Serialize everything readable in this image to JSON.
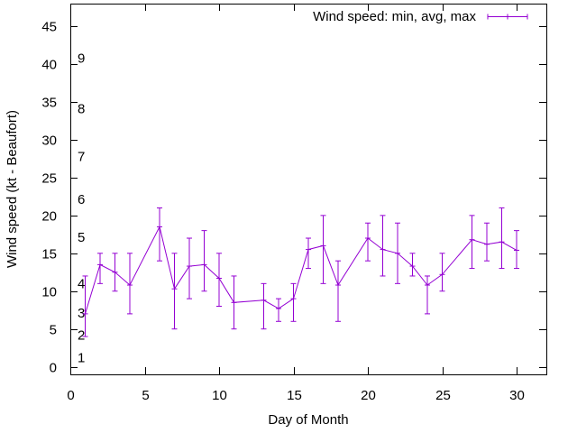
{
  "chart_data": {
    "type": "line",
    "title": "",
    "xlabel": "Day of Month",
    "ylabel": "Wind speed (kt - Beaufort)",
    "xlim": [
      0,
      32
    ],
    "ylim": [
      -1,
      48
    ],
    "grid": false,
    "legend_position": "top-right",
    "x_ticks": [
      0,
      5,
      10,
      15,
      20,
      25,
      30
    ],
    "y_ticks": [
      0,
      5,
      10,
      15,
      20,
      25,
      30,
      35,
      40,
      45
    ],
    "beaufort_labels": [
      {
        "label": "1",
        "value": 1.2
      },
      {
        "label": "2",
        "value": 4.2
      },
      {
        "label": "3",
        "value": 7.1
      },
      {
        "label": "4",
        "value": 11
      },
      {
        "label": "5",
        "value": 17.1
      },
      {
        "label": "6",
        "value": 22.1
      },
      {
        "label": "7",
        "value": 27.8
      },
      {
        "label": "8",
        "value": 34.1
      },
      {
        "label": "9",
        "value": 40.8
      }
    ],
    "series": [
      {
        "name": "Wind speed: min, avg, max",
        "color": "#9400d3",
        "x": [
          1,
          2,
          3,
          4,
          6,
          7,
          8,
          9,
          10,
          11,
          13,
          14,
          15,
          16,
          17,
          18,
          20,
          21,
          22,
          23,
          24,
          25,
          27,
          28,
          29,
          30
        ],
        "avg": [
          7,
          13.5,
          12.5,
          10.8,
          18.5,
          10.3,
          13.3,
          13.5,
          11.7,
          8.5,
          8.8,
          7.7,
          9,
          15.5,
          16,
          10.8,
          17,
          15.5,
          15,
          13.3,
          10.8,
          12.2,
          16.8,
          16.2,
          16.5,
          15.4
        ],
        "min": [
          4,
          11,
          10,
          7,
          14,
          5,
          9,
          10,
          8,
          5,
          5,
          6,
          6,
          13,
          11,
          6,
          14,
          12,
          11,
          12,
          7,
          10,
          13,
          14,
          13,
          13
        ],
        "max": [
          12,
          15,
          15,
          15,
          21,
          15,
          17,
          18,
          15,
          12,
          11,
          9,
          11,
          17,
          20,
          14,
          19,
          20,
          19,
          15,
          12,
          15,
          20,
          19,
          21,
          18
        ]
      }
    ]
  }
}
